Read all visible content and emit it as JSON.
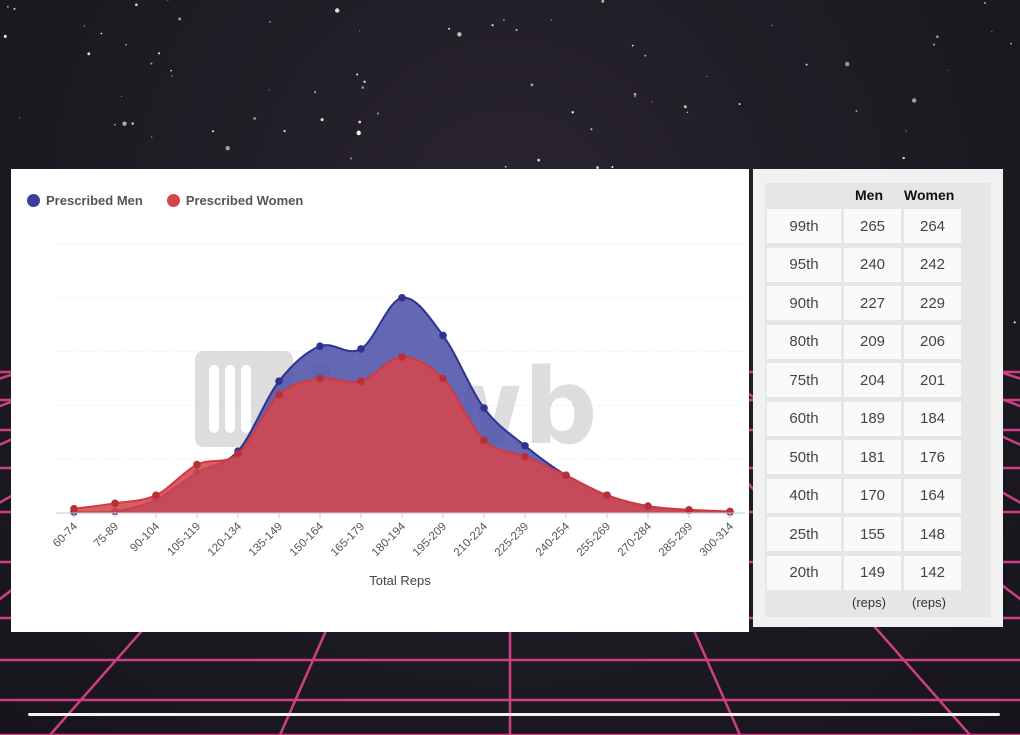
{
  "chart_data": {
    "type": "area",
    "xlabel": "Total Reps",
    "categories": [
      "60-74",
      "75-89",
      "90-104",
      "105-119",
      "120-134",
      "135-149",
      "150-164",
      "165-179",
      "180-194",
      "195-209",
      "210-224",
      "225-239",
      "240-254",
      "255-269",
      "270-284",
      "285-299",
      "300-314"
    ],
    "series": [
      {
        "name": "Prescribed Men",
        "color": "#3a3d9a",
        "values": [
          0.2,
          0.3,
          2.5,
          7.5,
          11.5,
          24.5,
          31,
          30.5,
          40,
          33,
          19.5,
          12.5,
          7,
          3.3,
          1.2,
          0.5,
          0.2
        ]
      },
      {
        "name": "Prescribed Women",
        "color": "#d5454b",
        "values": [
          0.8,
          1.8,
          3.3,
          9,
          11,
          22,
          25,
          24.5,
          29,
          25,
          13.5,
          10.5,
          7,
          3.3,
          1.3,
          0.6,
          0.3
        ]
      }
    ],
    "ylim": [
      0,
      50
    ],
    "grid": true,
    "legend": "top-left",
    "watermark": "btwb"
  },
  "percentile_table": {
    "headers": {
      "men": "Men",
      "women": "Women"
    },
    "rows": [
      {
        "label": "99th",
        "men": "265",
        "women": "264"
      },
      {
        "label": "95th",
        "men": "240",
        "women": "242"
      },
      {
        "label": "90th",
        "men": "227",
        "women": "229"
      },
      {
        "label": "80th",
        "men": "209",
        "women": "206"
      },
      {
        "label": "75th",
        "men": "204",
        "women": "201"
      },
      {
        "label": "60th",
        "men": "189",
        "women": "184"
      },
      {
        "label": "50th",
        "men": "181",
        "women": "176"
      },
      {
        "label": "40th",
        "men": "170",
        "women": "164"
      },
      {
        "label": "25th",
        "men": "155",
        "women": "148"
      },
      {
        "label": "20th",
        "men": "149",
        "women": "142"
      }
    ],
    "unit": "(reps)"
  }
}
